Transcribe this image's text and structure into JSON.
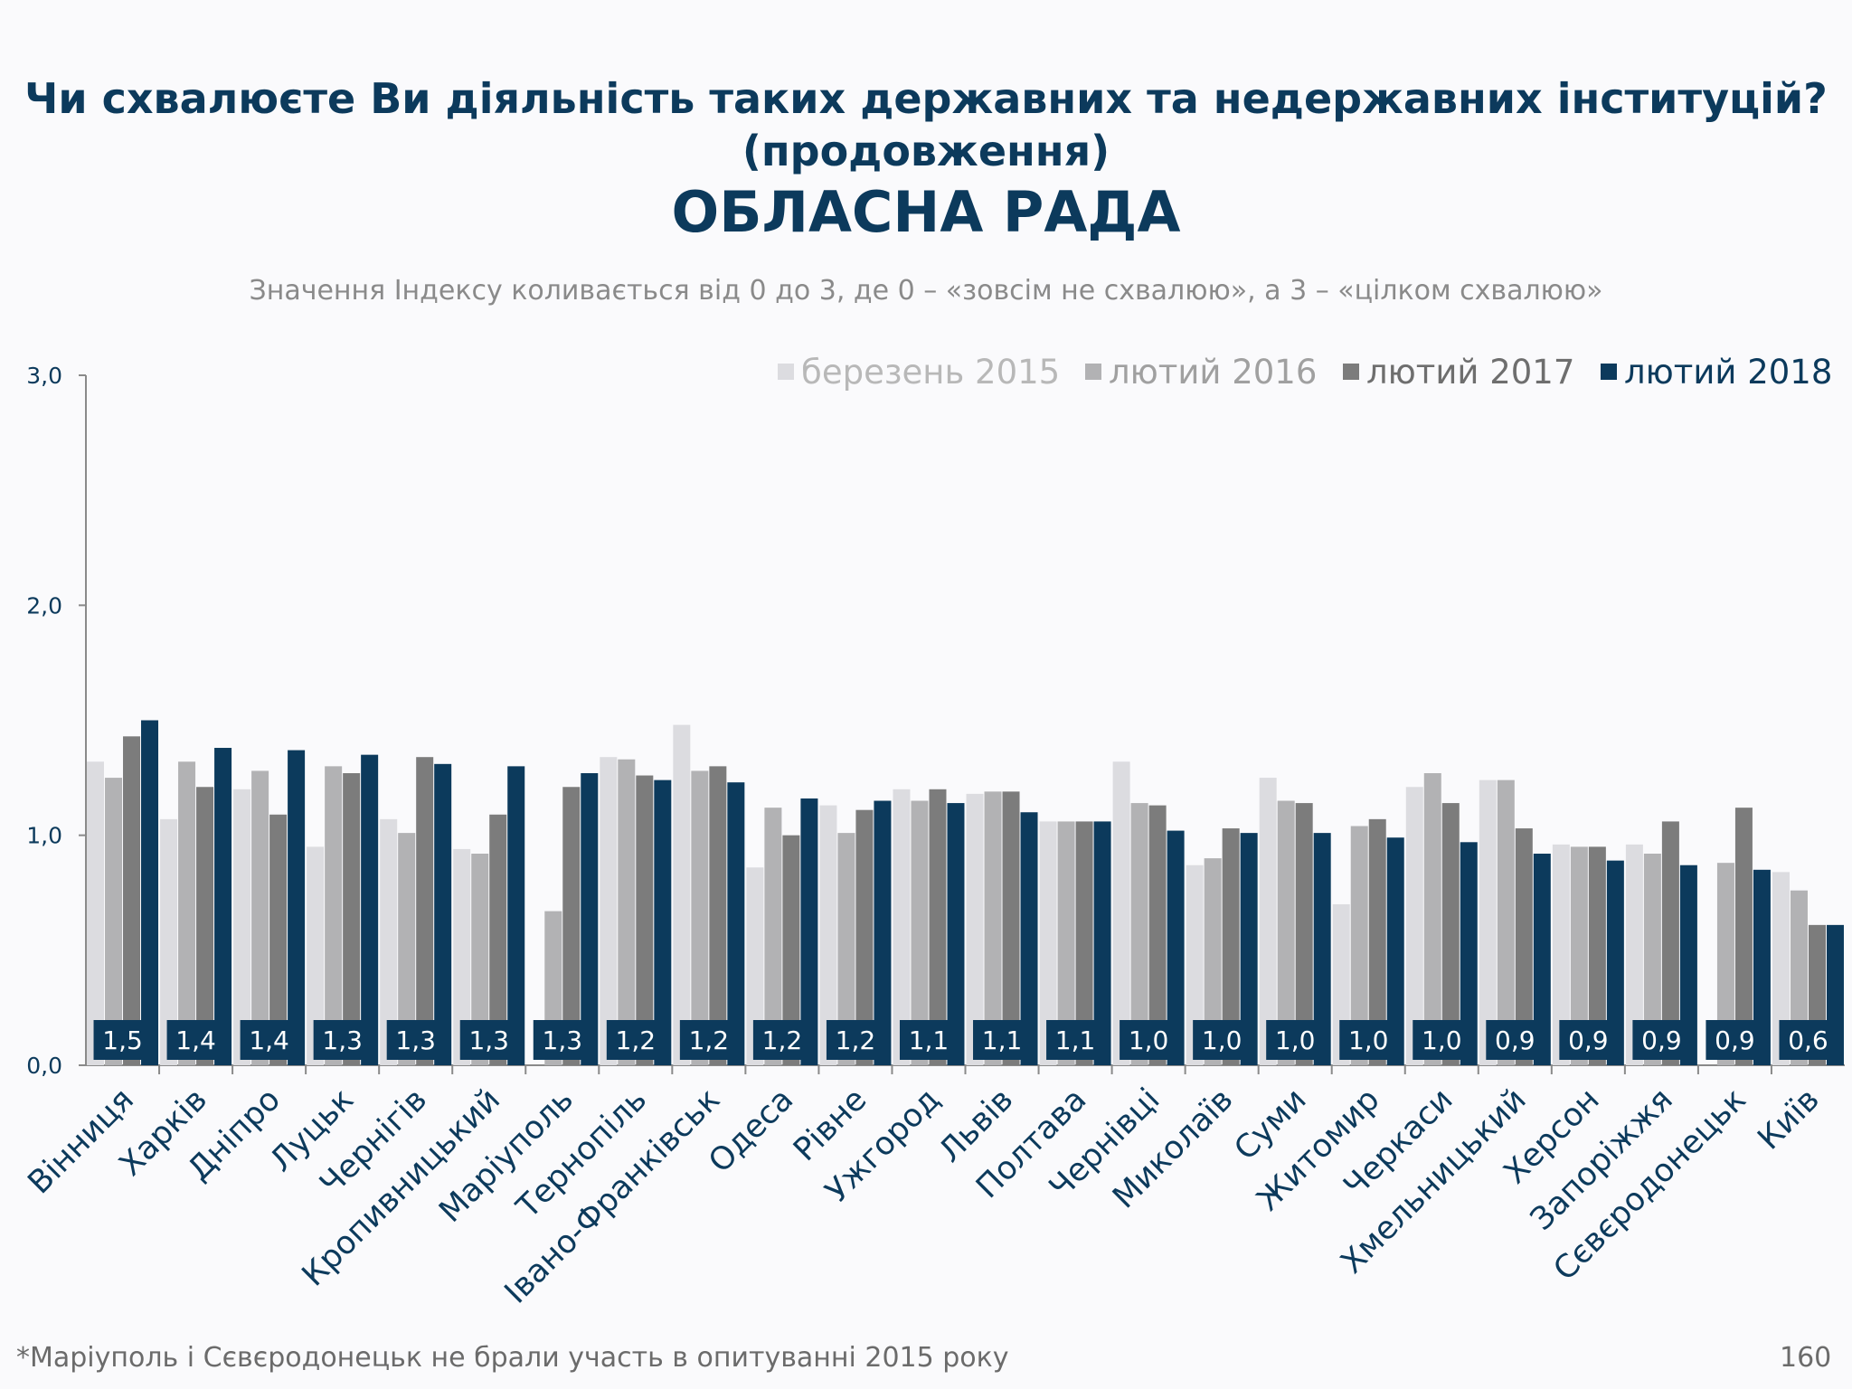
{
  "page": {
    "title_line1": "Чи схвалюєте Ви діяльність таких державних та недержавних інституцій?",
    "title_line2": "(продовження)",
    "subtitle": "ОБЛАСНА РАДА",
    "index_note": "Значення Індексу коливається від 0 до 3, де 0 – «зовсім не схвалюю», а 3 – «цілком схвалюю»",
    "footnote": "*Маріуполь і Сєвєродонецьк не брали участь в опитуванні 2015 року",
    "page_number": "160"
  },
  "colors": {
    "title": "#0c3a5c",
    "series": [
      "#dcdce0",
      "#b2b2b4",
      "#7c7c7c",
      "#0c3a5c"
    ],
    "legend_text": [
      "#b8b8b8",
      "#a0a0a0",
      "#6e6e6e",
      "#0c3a5c"
    ],
    "data_label_bg": "#0c3a5c",
    "data_label_text": "#ffffff",
    "axis": "#8a8a8a"
  },
  "chart_data": {
    "type": "bar",
    "ylim": [
      0,
      3
    ],
    "yticks": [
      0,
      1,
      2,
      3
    ],
    "ytick_labels": [
      "0,0",
      "1,0",
      "2,0",
      "3,0"
    ],
    "grid": false,
    "legend_position": "top-right",
    "categories": [
      "Вінниця",
      "Харків",
      "Дніпро",
      "Луцьк",
      "Чернігів",
      "Кропивницький",
      "Маріуполь",
      "Тернопіль",
      "Івано-Франківськ",
      "Одеса",
      "Рівне",
      "Ужгород",
      "Львів",
      "Полтава",
      "Чернівці",
      "Миколаїв",
      "Суми",
      "Житомир",
      "Черкаси",
      "Хмельницький",
      "Херсон",
      "Запоріжжя",
      "Сєвєродонецьк",
      "Київ"
    ],
    "series": [
      {
        "name": "березень 2015",
        "values": [
          1.32,
          1.07,
          1.2,
          0.95,
          1.07,
          0.94,
          null,
          1.34,
          1.48,
          0.86,
          1.13,
          1.2,
          1.18,
          1.06,
          1.32,
          0.87,
          1.25,
          0.7,
          1.21,
          1.24,
          0.96,
          0.96,
          null,
          0.84
        ]
      },
      {
        "name": "лютий 2016",
        "values": [
          1.25,
          1.32,
          1.28,
          1.3,
          1.01,
          0.92,
          0.67,
          1.33,
          1.28,
          1.12,
          1.01,
          1.15,
          1.19,
          1.06,
          1.14,
          0.9,
          1.15,
          1.04,
          1.27,
          1.24,
          0.95,
          0.92,
          0.88,
          0.76
        ]
      },
      {
        "name": "лютий 2017",
        "values": [
          1.43,
          1.21,
          1.09,
          1.27,
          1.34,
          1.09,
          1.21,
          1.26,
          1.3,
          1.0,
          1.11,
          1.2,
          1.19,
          1.06,
          1.13,
          1.03,
          1.14,
          1.07,
          1.14,
          1.03,
          0.95,
          1.06,
          1.12,
          0.61
        ]
      },
      {
        "name": "лютий 2018",
        "values": [
          1.5,
          1.38,
          1.37,
          1.35,
          1.31,
          1.3,
          1.27,
          1.24,
          1.23,
          1.16,
          1.15,
          1.14,
          1.1,
          1.06,
          1.02,
          1.01,
          1.01,
          0.99,
          0.97,
          0.92,
          0.89,
          0.87,
          0.85,
          0.61
        ]
      }
    ],
    "data_labels": [
      "1,5",
      "1,4",
      "1,4",
      "1,3",
      "1,3",
      "1,3",
      "1,3",
      "1,2",
      "1,2",
      "1,2",
      "1,2",
      "1,1",
      "1,1",
      "1,1",
      "1,0",
      "1,0",
      "1,0",
      "1,0",
      "1,0",
      "0,9",
      "0,9",
      "0,9",
      "0,9",
      "0,6"
    ]
  }
}
